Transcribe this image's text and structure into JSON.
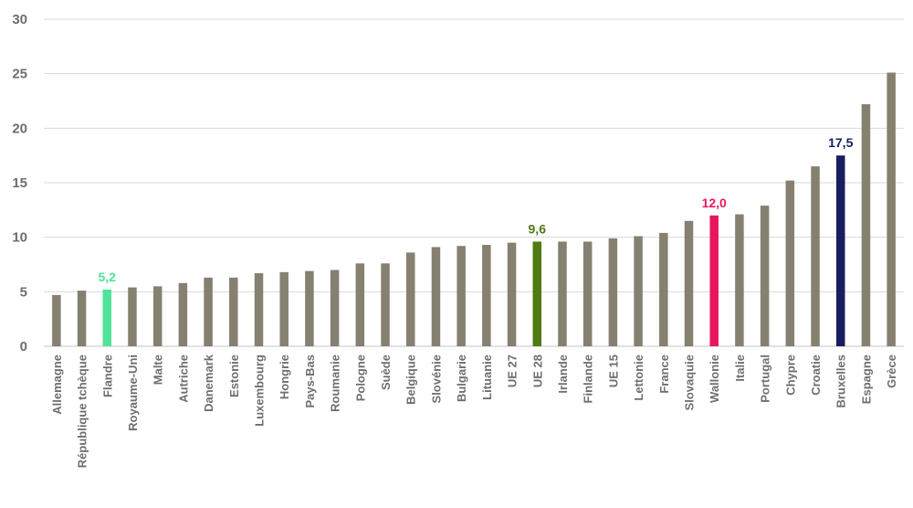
{
  "chart_data": {
    "type": "bar",
    "title": "",
    "xlabel": "",
    "ylabel": "",
    "ylim": [
      0,
      30
    ],
    "yticks": [
      0,
      5,
      10,
      15,
      20,
      25,
      30
    ],
    "grid": true,
    "categories": [
      "Allemagne",
      "République tchèque",
      "Flandre",
      "Royaume-Uni",
      "Malte",
      "Autriche",
      "Danemark",
      "Estonie",
      "Luxembourg",
      "Hongrie",
      "Pays-Bas",
      "Roumanie",
      "Pologne",
      "Suède",
      "Belgique",
      "Slovénie",
      "Bulgarie",
      "Lituanie",
      "UE 27",
      "UE 28",
      "Irlande",
      "Finlande",
      "UE 15",
      "Lettonie",
      "France",
      "Slovaquie",
      "Wallonie",
      "Italie",
      "Portugal",
      "Chypre",
      "Croatie",
      "Bruxelles",
      "Espagne",
      "Grèce"
    ],
    "values": [
      4.7,
      5.1,
      5.2,
      5.4,
      5.5,
      5.8,
      6.3,
      6.3,
      6.7,
      6.8,
      6.9,
      7.0,
      7.6,
      7.6,
      8.6,
      9.1,
      9.2,
      9.3,
      9.5,
      9.6,
      9.6,
      9.6,
      9.9,
      10.1,
      10.4,
      11.5,
      12.0,
      12.1,
      12.9,
      15.2,
      16.5,
      17.5,
      22.2,
      25.1
    ],
    "data_labels": [
      {
        "category": "Flandre",
        "text": "5,2"
      },
      {
        "category": "UE 28",
        "text": "9,6"
      },
      {
        "category": "Wallonie",
        "text": "12,0"
      },
      {
        "category": "Bruxelles",
        "text": "17,5"
      }
    ],
    "colors": {
      "default": "#858070",
      "Flandre": "#4fe39a",
      "UE 28": "#4f7a14",
      "Wallonie": "#e8175d",
      "Bruxelles": "#1a1d5e",
      "grid": "#d9d9d9",
      "text": "#6e6e6e"
    }
  }
}
